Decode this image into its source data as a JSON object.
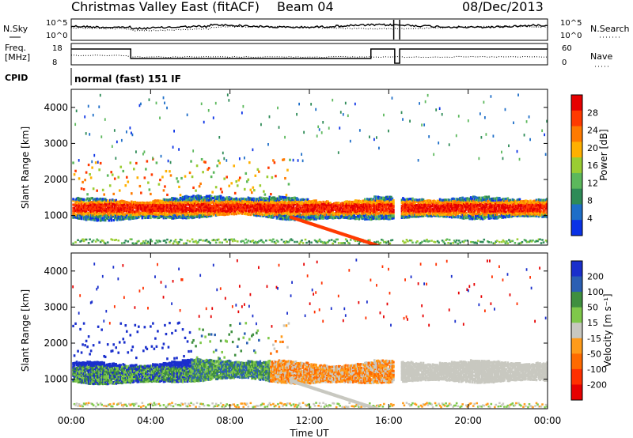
{
  "header": {
    "station": "Christmas Valley East (fitACF)",
    "beam": "Beam 04",
    "date": "08/Dec/2013"
  },
  "noise_panel": {
    "left_label": "N.Sky",
    "right_label": "N.Search",
    "left_ticks": [
      "10^5",
      "10^0"
    ],
    "right_ticks": [
      "10^5",
      "10^0"
    ]
  },
  "freq_panel": {
    "left_label_1": "Freq.",
    "left_label_2": "[MHz]",
    "right_label": "Nave",
    "left_ticks": [
      "18",
      "8"
    ],
    "right_ticks": [
      "60",
      "0"
    ]
  },
  "cpid": {
    "label": "CPID",
    "value": "normal (fast) 151 IF"
  },
  "x_axis": {
    "label": "Time UT",
    "ticks": [
      "00:00",
      "04:00",
      "08:00",
      "12:00",
      "16:00",
      "20:00",
      "00:00"
    ]
  },
  "chart_data": [
    {
      "type": "heatmap",
      "title": "",
      "ylabel": "Slant Range [km]",
      "xlabel": "Time UT",
      "xlim": [
        0,
        24
      ],
      "ylim": [
        180,
        4500
      ],
      "yticks": [
        "1000",
        "2000",
        "3000",
        "4000"
      ],
      "colorbar": {
        "label": "Power [dB]",
        "ticks": [
          "4",
          "8",
          "12",
          "16",
          "20",
          "24",
          "28"
        ],
        "colors": [
          "#0a32e6",
          "#1e6ec8",
          "#2e8b57",
          "#5cb85c",
          "#9acd32",
          "#ffb000",
          "#ff7a00",
          "#ff3a00",
          "#e60000"
        ]
      },
      "bands": [
        {
          "t0": 0.1,
          "t1": 15.2,
          "r0": 900,
          "r1": 1500,
          "level": "high"
        },
        {
          "t0": 16.8,
          "t1": 24.0,
          "r0": 950,
          "r1": 1500,
          "level": "high"
        },
        {
          "t0": 0.3,
          "t1": 3.5,
          "r0": 1500,
          "r1": 2500,
          "level": "mid"
        }
      ]
    },
    {
      "type": "heatmap",
      "title": "",
      "ylabel": "Slant Range [km]",
      "xlabel": "Time UT",
      "xlim": [
        0,
        24
      ],
      "ylim": [
        180,
        4500
      ],
      "yticks": [
        "1000",
        "2000",
        "3000",
        "4000"
      ],
      "colorbar": {
        "label": "Velocity [m s⁻¹]",
        "ticks": [
          "200",
          "100",
          "50",
          "15",
          "-15",
          "-50",
          "-100",
          "-200"
        ],
        "colors": [
          "#1a2fcc",
          "#2b5fb3",
          "#3f8f3f",
          "#7fc84a",
          "#c8c8c0",
          "#ff9b1a",
          "#ff6a00",
          "#ff3000",
          "#e60000"
        ]
      }
    }
  ]
}
